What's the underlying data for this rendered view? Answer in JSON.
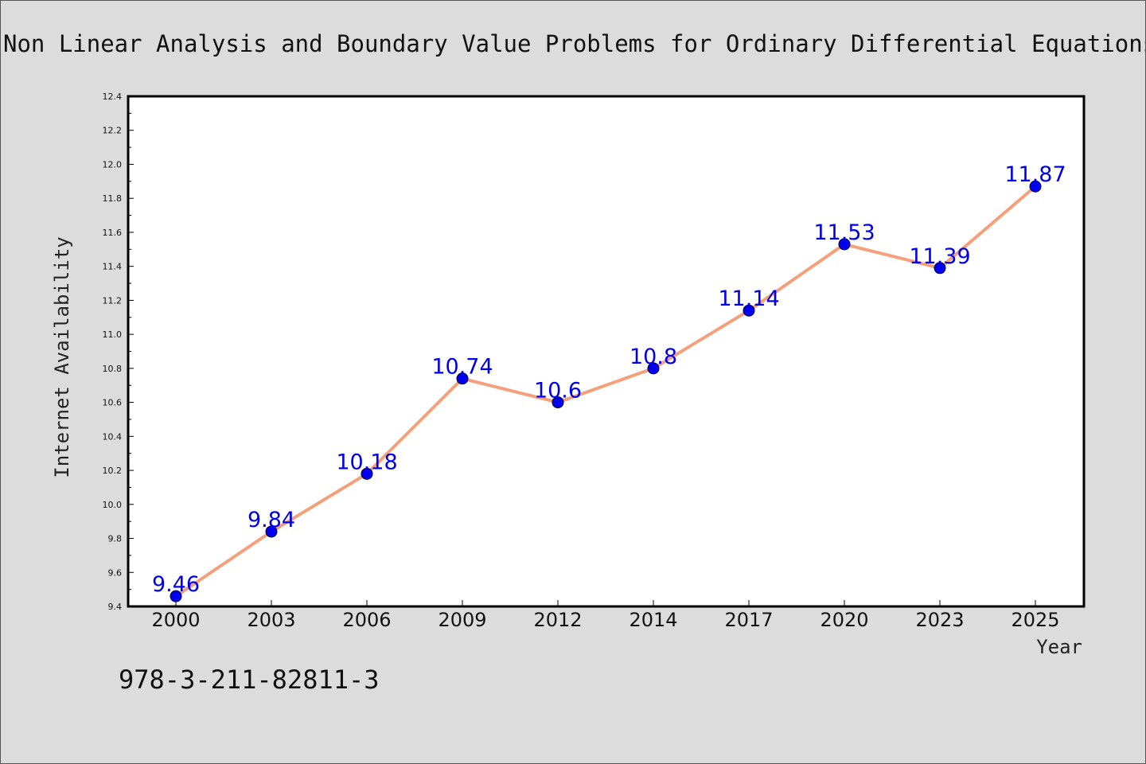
{
  "chart_data": {
    "type": "line",
    "title": "Non Linear Analysis and Boundary Value Problems for Ordinary Differential Equations",
    "xlabel": "Year",
    "ylabel": "Internet Availability",
    "categories": [
      "2000",
      "2003",
      "2006",
      "2009",
      "2012",
      "2014",
      "2017",
      "2020",
      "2023",
      "2025"
    ],
    "series": [
      {
        "values": [
          9.46,
          9.84,
          10.18,
          10.74,
          10.6,
          10.8,
          11.14,
          11.53,
          11.39,
          11.87
        ],
        "data_labels": [
          "9.46",
          "9.84",
          "10.18",
          "10.74",
          "10.6",
          "10.8",
          "11.14",
          "11.53",
          "11.39",
          "11.87"
        ]
      }
    ],
    "ylim": [
      9.4,
      12.4
    ],
    "yticks": [
      "9.4",
      "9.6",
      "9.8",
      "10.0",
      "10.2",
      "10.4",
      "10.6",
      "10.8",
      "11.0",
      "11.2",
      "11.4",
      "11.6",
      "11.8",
      "12.0",
      "12.2",
      "12.4"
    ],
    "grid": false,
    "legend": "none",
    "colors": {
      "background": "#dcdcdc",
      "plot_area": "#ffffff",
      "line": "#f4a07a",
      "marker": "#0000ee",
      "data_label": "#0000ee"
    }
  },
  "footnote": "978-3-211-82811-3"
}
